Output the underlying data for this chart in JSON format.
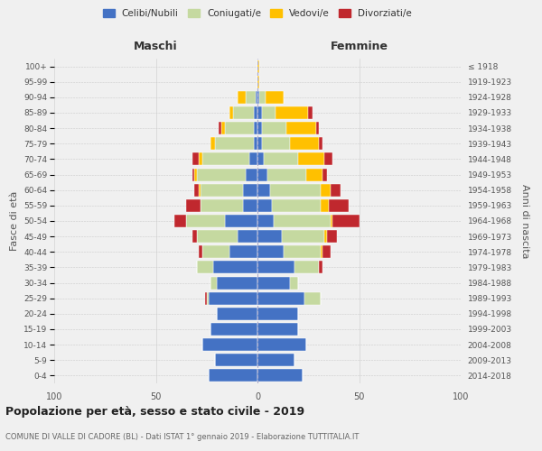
{
  "age_groups": [
    "0-4",
    "5-9",
    "10-14",
    "15-19",
    "20-24",
    "25-29",
    "30-34",
    "35-39",
    "40-44",
    "45-49",
    "50-54",
    "55-59",
    "60-64",
    "65-69",
    "70-74",
    "75-79",
    "80-84",
    "85-89",
    "90-94",
    "95-99",
    "100+"
  ],
  "birth_years": [
    "2014-2018",
    "2009-2013",
    "2004-2008",
    "1999-2003",
    "1994-1998",
    "1989-1993",
    "1984-1988",
    "1979-1983",
    "1974-1978",
    "1969-1973",
    "1964-1968",
    "1959-1963",
    "1954-1958",
    "1949-1953",
    "1944-1948",
    "1939-1943",
    "1934-1938",
    "1929-1933",
    "1924-1928",
    "1919-1923",
    "≤ 1918"
  ],
  "males": {
    "celibi": [
      24,
      21,
      27,
      23,
      20,
      24,
      20,
      22,
      14,
      10,
      16,
      7,
      7,
      6,
      4,
      2,
      2,
      2,
      1,
      0,
      0
    ],
    "coniugati": [
      0,
      0,
      0,
      0,
      0,
      1,
      3,
      8,
      13,
      20,
      19,
      21,
      21,
      24,
      23,
      19,
      14,
      10,
      5,
      0,
      0
    ],
    "vedovi": [
      0,
      0,
      0,
      0,
      0,
      0,
      0,
      0,
      0,
      0,
      0,
      0,
      1,
      1,
      2,
      2,
      2,
      2,
      4,
      0,
      0
    ],
    "divorziati": [
      0,
      0,
      0,
      0,
      0,
      1,
      0,
      0,
      2,
      2,
      6,
      7,
      2,
      1,
      3,
      0,
      1,
      0,
      0,
      0,
      0
    ]
  },
  "females": {
    "nubili": [
      22,
      18,
      24,
      20,
      20,
      23,
      16,
      18,
      13,
      12,
      8,
      7,
      6,
      5,
      3,
      2,
      2,
      2,
      1,
      0,
      0
    ],
    "coniugate": [
      0,
      0,
      0,
      0,
      0,
      8,
      4,
      12,
      18,
      21,
      28,
      24,
      25,
      19,
      17,
      14,
      12,
      7,
      3,
      0,
      0
    ],
    "vedove": [
      0,
      0,
      0,
      0,
      0,
      0,
      0,
      0,
      1,
      1,
      1,
      4,
      5,
      8,
      13,
      14,
      15,
      16,
      9,
      1,
      1
    ],
    "divorziate": [
      0,
      0,
      0,
      0,
      0,
      0,
      0,
      2,
      4,
      5,
      13,
      10,
      5,
      2,
      4,
      2,
      1,
      2,
      0,
      0,
      0
    ]
  },
  "colors": {
    "celibi_nubili": "#4472c4",
    "coniugati": "#c5d9a0",
    "vedovi": "#ffc000",
    "divorziati": "#c0282e"
  },
  "title": "Popolazione per età, sesso e stato civile - 2019",
  "subtitle": "COMUNE DI VALLE DI CADORE (BL) - Dati ISTAT 1° gennaio 2019 - Elaborazione TUTTITALIA.IT",
  "xlabel_left": "Maschi",
  "xlabel_right": "Femmine",
  "ylabel_left": "Fasce di età",
  "ylabel_right": "Anni di nascita",
  "xlim": 100,
  "background_color": "#f0f0f0"
}
